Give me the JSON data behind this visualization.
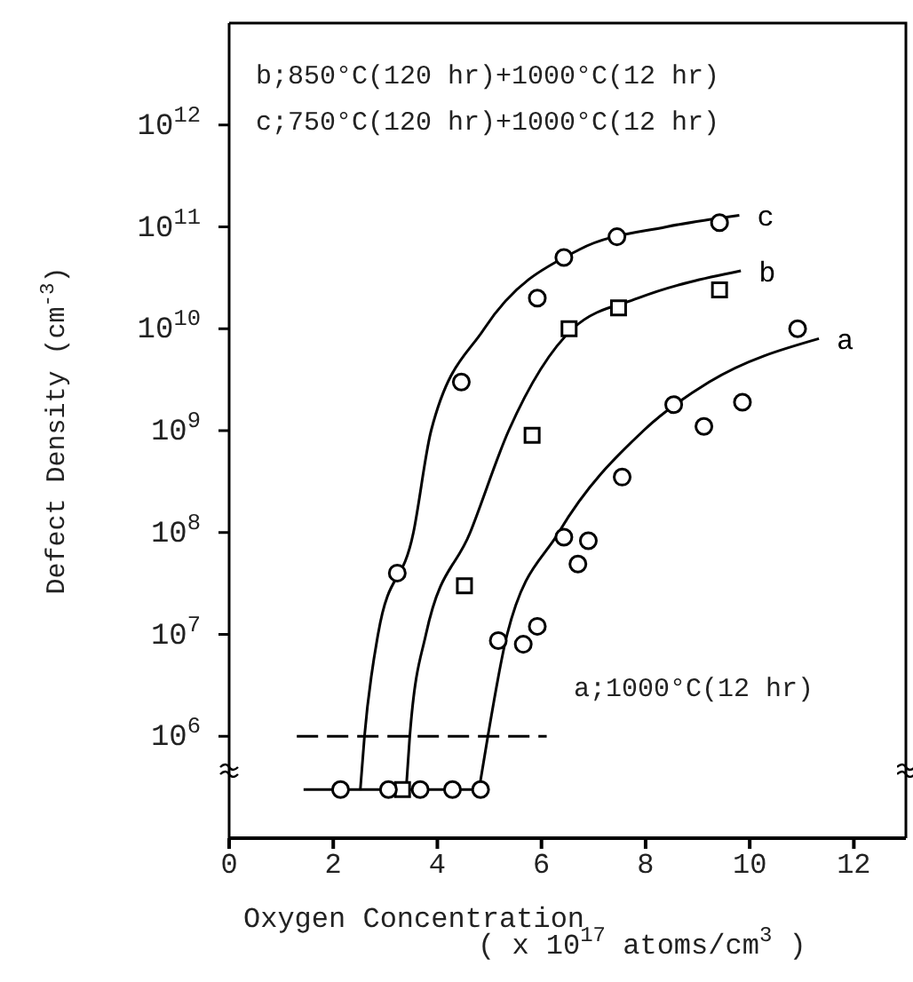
{
  "chart_data": {
    "type": "scatter",
    "xlabel": "Oxygen Concentration\n( x 10$^{17}$ atoms/cm$^{3}$ )",
    "ylabel": "Defect Density (cm$^{-3}$)",
    "log": "y",
    "grid": false,
    "legend": false,
    "xlim": [
      0,
      13
    ],
    "xticks": [
      0,
      2,
      4,
      6,
      8,
      10,
      12
    ],
    "ylim": [
      100000,
      10000000000000
    ],
    "yticks": [
      {
        "value": 1000000,
        "label": "10$^{6}$"
      },
      {
        "value": 10000000,
        "label": "10$^{7}$"
      },
      {
        "value": 100000000,
        "label": "10$^{8}$"
      },
      {
        "value": 1000000000,
        "label": "10$^{9}$"
      },
      {
        "value": 10000000000,
        "label": "10$^{10}$"
      },
      {
        "value": 100000000000,
        "label": "10$^{11}$"
      },
      {
        "value": 1000000000000,
        "label": "10$^{12}$"
      }
    ],
    "annotations": [
      "b;850°C(120 hr)+1000°C(12 hr)",
      "c;750°C(120 hr)+1000°C(12 hr)",
      "a;1000°C(12 hr)"
    ],
    "series": [
      {
        "type": "line",
        "name": "c",
        "color": "#000000",
        "marker": "none",
        "x": [
          2.52,
          2.6,
          2.86,
          3.54,
          3.88,
          4.9,
          6.73,
          8.4,
          9.8
        ],
        "values": [
          300000,
          1000000,
          10000000,
          100000000,
          1000000000,
          10000000000,
          60000000000,
          100000000000,
          130000000000
        ]
      },
      {
        "type": "line",
        "name": "b",
        "color": "#000000",
        "marker": "none",
        "x": [
          3.4,
          3.47,
          3.78,
          4.63,
          5.37,
          6.6,
          7.86,
          9.83
        ],
        "values": [
          300000,
          1000000,
          10000000,
          100000000,
          1000000000,
          10000000000,
          20000000000,
          37000000000
        ]
      },
      {
        "type": "line",
        "name": "a",
        "color": "#000000",
        "marker": "none",
        "x": [
          4.8,
          4.97,
          5.34,
          6.33,
          7.96,
          9.22,
          11.33
        ],
        "values": [
          300000,
          1000000,
          10000000,
          100000000,
          1000000000,
          3000000000,
          8000000000
        ]
      },
      {
        "type": "line",
        "color": "#000000",
        "marker": "none",
        "line_style": "dashed",
        "x": [
          1.3,
          6.1
        ],
        "values": [
          1000000,
          1000000
        ]
      },
      {
        "type": "line",
        "color": "#000000",
        "marker": "none",
        "x": [
          1.43,
          4.9
        ],
        "values": [
          300000,
          300000
        ]
      },
      {
        "color": "#000000",
        "marker": "circle",
        "x": [
          3.23,
          4.46,
          5.92,
          6.43,
          7.45,
          9.42
        ],
        "values": [
          40000000,
          3000000000,
          20000000000,
          50000000000,
          80000000000,
          110000000000
        ]
      },
      {
        "color": "#000000",
        "marker": "square",
        "x": [
          3.33,
          4.52,
          5.82,
          6.53,
          7.48,
          9.42
        ],
        "values": [
          300000,
          30000000,
          900000000,
          10000000000,
          16000000000,
          24000000000
        ]
      },
      {
        "color": "#000000",
        "marker": "circle",
        "x": [
          2.14,
          3.06,
          3.67,
          4.29,
          4.83,
          5.17,
          5.65,
          5.92,
          6.43,
          6.7,
          6.9,
          7.55,
          8.54,
          9.12,
          9.86,
          10.92
        ],
        "values": [
          300000,
          300000,
          300000,
          300000,
          300000,
          8700000,
          8000000,
          12000000,
          90000000,
          49000000,
          83000000,
          350000000,
          1800000000,
          1100000000,
          1900000000,
          10000000000
        ]
      }
    ]
  }
}
